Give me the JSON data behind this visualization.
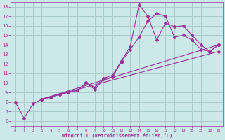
{
  "xlabel": "Windchill (Refroidissement éolien,°C)",
  "bg_color": "#cce8e8",
  "grid_color": "#aacccc",
  "line_color": "#993399",
  "xlim": [
    -0.5,
    23.5
  ],
  "ylim": [
    5.5,
    18.5
  ],
  "xticks": [
    0,
    1,
    2,
    3,
    4,
    5,
    6,
    7,
    8,
    9,
    10,
    11,
    12,
    13,
    14,
    15,
    16,
    17,
    18,
    19,
    20,
    21,
    22,
    23
  ],
  "yticks": [
    6,
    7,
    8,
    9,
    10,
    11,
    12,
    13,
    14,
    15,
    16,
    17,
    18
  ],
  "lines": [
    {
      "x": [
        0,
        1,
        2,
        3,
        4,
        5,
        6,
        7,
        8,
        9,
        10,
        11,
        12,
        13,
        14,
        15,
        16,
        17,
        18,
        19,
        20,
        21,
        22,
        23
      ],
      "y": [
        8.0,
        6.3,
        7.8,
        8.3,
        8.5,
        8.8,
        9.0,
        9.2,
        10.0,
        9.3,
        10.4,
        10.6,
        12.2,
        13.5,
        14.8,
        16.5,
        17.3,
        17.0,
        14.8,
        15.0,
        14.5,
        13.5,
        13.3,
        14.0
      ]
    },
    {
      "x": [
        3,
        4,
        5,
        6,
        7,
        8,
        9,
        10,
        11,
        12,
        13,
        14,
        15,
        16,
        17,
        18,
        19,
        20,
        21,
        22,
        23
      ],
      "y": [
        8.3,
        8.5,
        8.8,
        9.0,
        9.2,
        10.0,
        9.5,
        10.5,
        10.8,
        12.3,
        13.8,
        18.2,
        17.0,
        14.5,
        16.3,
        15.9,
        16.0,
        15.0,
        14.0,
        13.3,
        14.0
      ]
    },
    {
      "x": [
        3,
        23
      ],
      "y": [
        8.3,
        14.0
      ]
    },
    {
      "x": [
        3,
        23
      ],
      "y": [
        8.3,
        13.3
      ]
    }
  ]
}
